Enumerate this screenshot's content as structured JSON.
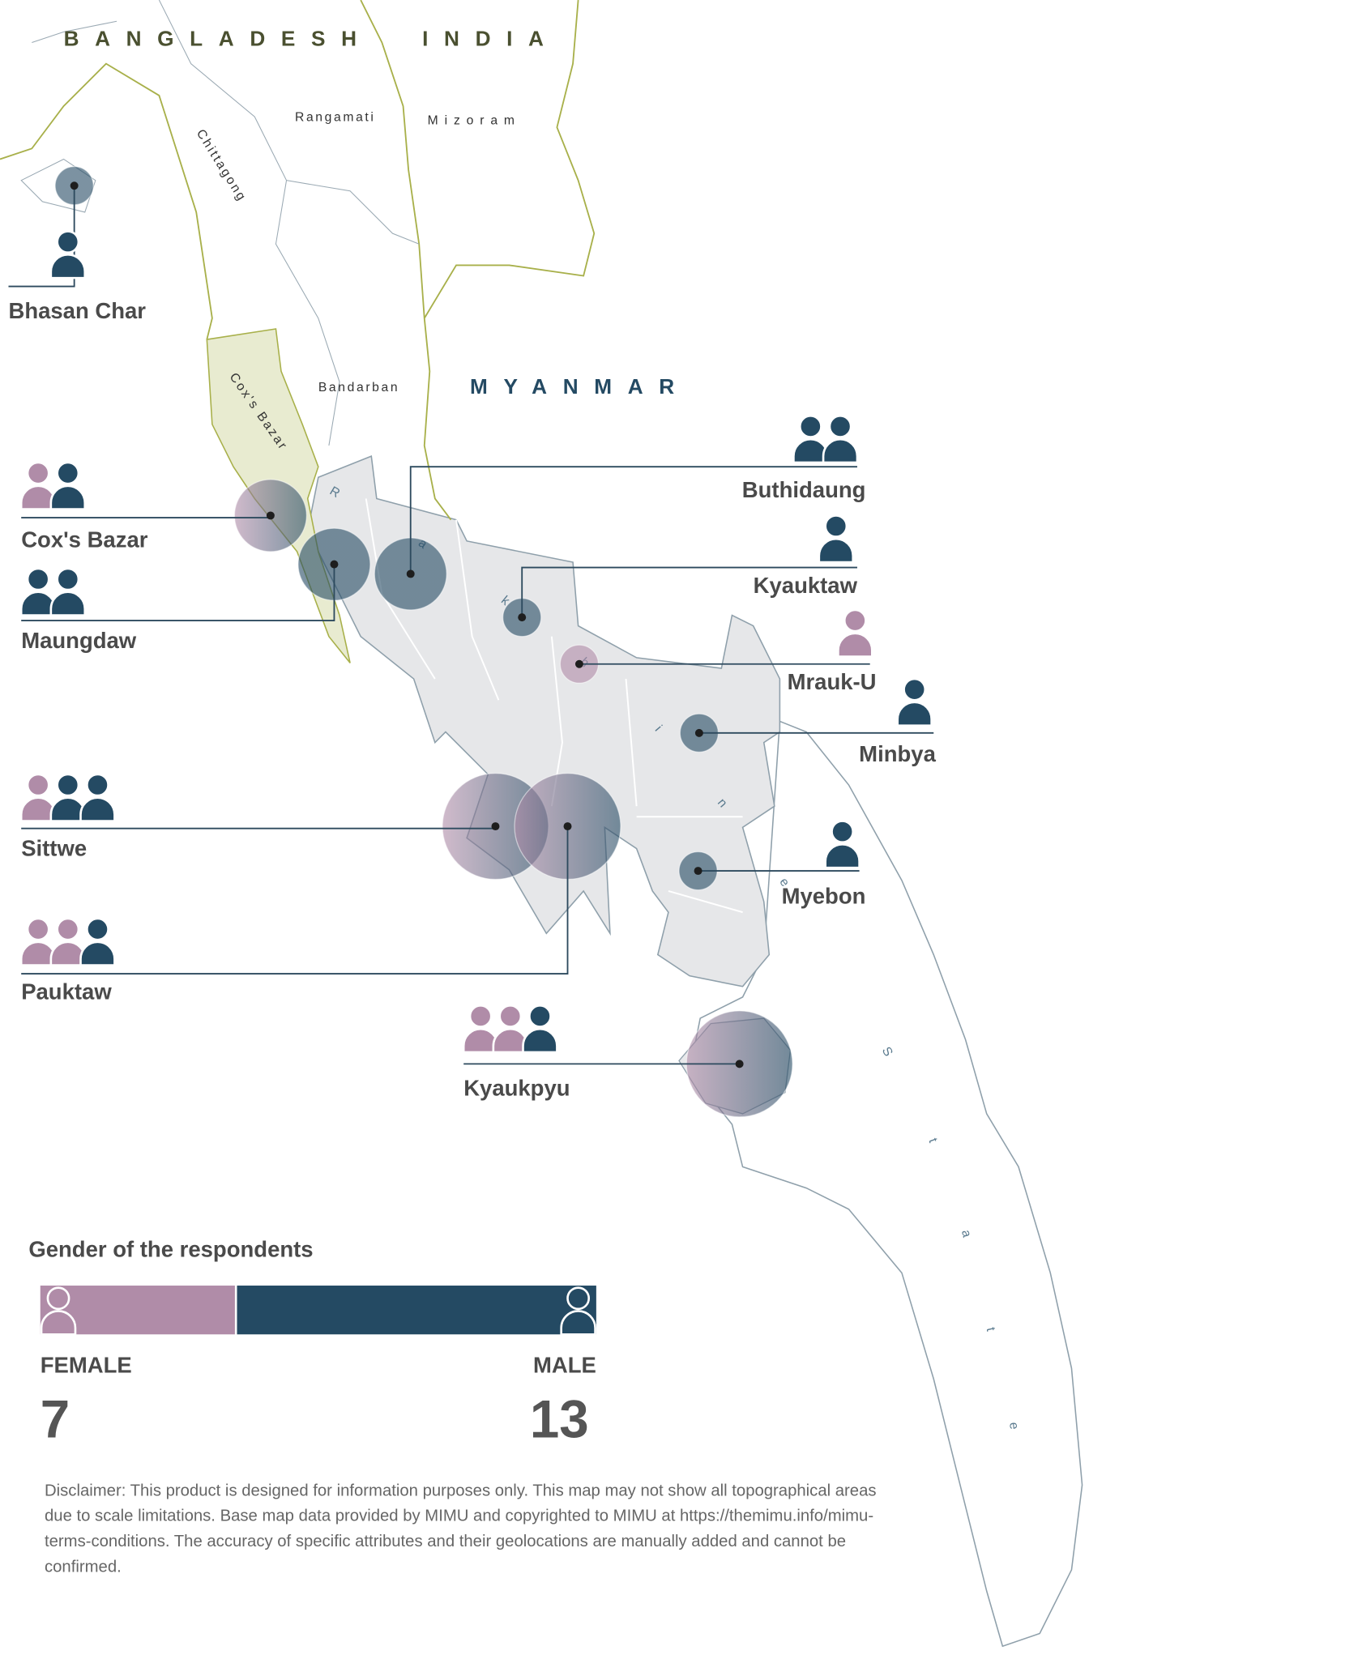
{
  "map": {
    "countries": [
      "BANGLADESH",
      "INDIA",
      "MYANMAR"
    ],
    "places": [
      "Rangamati",
      "Mizoram",
      "Chittagong",
      "Cox's Bazar",
      "Bandarban"
    ],
    "state_label": "Rakhine State"
  },
  "locations": [
    {
      "name": "Bhasan Char",
      "female": 0,
      "male": 1
    },
    {
      "name": "Cox's Bazar",
      "female": 1,
      "male": 1
    },
    {
      "name": "Maungdaw",
      "female": 0,
      "male": 2
    },
    {
      "name": "Buthidaung",
      "female": 0,
      "male": 2
    },
    {
      "name": "Kyauktaw",
      "female": 0,
      "male": 1
    },
    {
      "name": "Mrauk-U",
      "female": 1,
      "male": 0
    },
    {
      "name": "Minbya",
      "female": 0,
      "male": 1
    },
    {
      "name": "Sittwe",
      "female": 1,
      "male": 2
    },
    {
      "name": "Pauktaw",
      "female": 2,
      "male": 1
    },
    {
      "name": "Myebon",
      "female": 0,
      "male": 1
    },
    {
      "name": "Kyaukpyu",
      "female": 2,
      "male": 1
    }
  ],
  "legend": {
    "title": "Gender of the respondents",
    "female_label": "FEMALE",
    "female_total": 7,
    "male_label": "MALE",
    "male_total": 13
  },
  "disclaimer": "Disclaimer: This product is designed for information purposes only. This map may not show all topographical areas due to scale limitations. Base map data provided by MIMU and copyrighted to MIMU at https://themimu.info/mimu-terms-conditions. The accuracy of specific attributes and their geolocations are manually added and cannot be confirmed."
}
